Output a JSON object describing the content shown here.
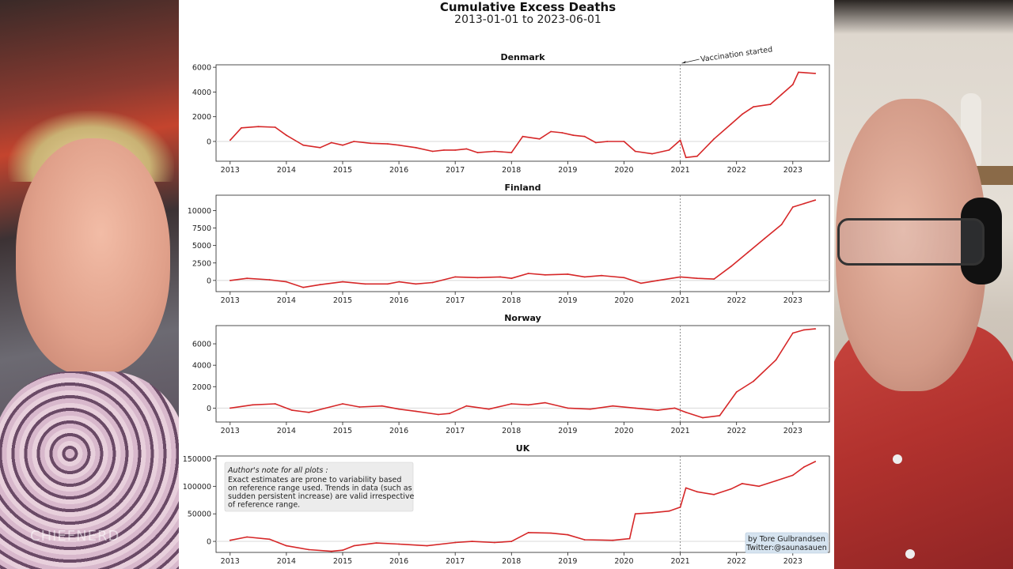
{
  "video": {
    "watermark": "CHIEFNERD"
  },
  "chart": {
    "title": "Cumulative Excess Deaths",
    "subtitle": "2013-01-01 to 2023-06-01",
    "annotation": "Vaccination started",
    "vaccination_x": 2021.0,
    "note_title": "Author's note for all plots :",
    "note_lines": [
      "Exact estimates are prone to variability based",
      "on reference range used. Trends in data (such as",
      "sudden persistent increase) are valid irrespective",
      "of reference range."
    ],
    "credit_lines": [
      "by Tore Gulbrandsen",
      "Twitter:@saunasauen"
    ],
    "line_color": "#d62728"
  },
  "chart_data": [
    {
      "type": "line",
      "title": "Denmark",
      "xlim": [
        2012.75,
        2023.65
      ],
      "ylim": [
        -1600,
        6200
      ],
      "xticks": [
        2013,
        2014,
        2015,
        2016,
        2017,
        2018,
        2019,
        2020,
        2021,
        2022,
        2023
      ],
      "xticklabels": [
        "2013",
        "2014",
        "2015",
        "2016",
        "2017",
        "2018",
        "2019",
        "2020",
        "2021",
        "2022",
        "2023"
      ],
      "yticks": [
        0,
        2000,
        4000,
        6000
      ],
      "yticklabels": [
        "0",
        "2000",
        "4000",
        "6000"
      ],
      "x": [
        2013.0,
        2013.2,
        2013.5,
        2013.8,
        2014.0,
        2014.3,
        2014.6,
        2014.8,
        2015.0,
        2015.2,
        2015.5,
        2015.8,
        2016.0,
        2016.3,
        2016.6,
        2016.8,
        2017.0,
        2017.2,
        2017.4,
        2017.7,
        2018.0,
        2018.2,
        2018.5,
        2018.7,
        2018.9,
        2019.1,
        2019.3,
        2019.5,
        2019.7,
        2020.0,
        2020.2,
        2020.5,
        2020.8,
        2021.0,
        2021.1,
        2021.3,
        2021.6,
        2021.9,
        2022.1,
        2022.3,
        2022.6,
        2022.8,
        2023.0,
        2023.1,
        2023.4
      ],
      "y": [
        100,
        1100,
        1200,
        1150,
        500,
        -300,
        -500,
        -100,
        -300,
        0,
        -150,
        -200,
        -300,
        -500,
        -800,
        -700,
        -700,
        -600,
        -900,
        -800,
        -900,
        400,
        200,
        800,
        700,
        500,
        400,
        -100,
        0,
        0,
        -800,
        -1000,
        -700,
        100,
        -1300,
        -1200,
        200,
        1400,
        2200,
        2800,
        3000,
        3800,
        4600,
        5600,
        5500
      ]
    },
    {
      "type": "line",
      "title": "Finland",
      "xlim": [
        2012.75,
        2023.65
      ],
      "ylim": [
        -1600,
        12200
      ],
      "xticks": [
        2013,
        2014,
        2015,
        2016,
        2017,
        2018,
        2019,
        2020,
        2021,
        2022,
        2023
      ],
      "xticklabels": [
        "2013",
        "2014",
        "2015",
        "2016",
        "2017",
        "2018",
        "2019",
        "2020",
        "2021",
        "2022",
        "2023"
      ],
      "yticks": [
        0,
        2500,
        5000,
        7500,
        10000
      ],
      "yticklabels": [
        "0",
        "2500",
        "5000",
        "7500",
        "10000"
      ],
      "x": [
        2013.0,
        2013.3,
        2013.7,
        2014.0,
        2014.3,
        2014.6,
        2015.0,
        2015.4,
        2015.8,
        2016.0,
        2016.3,
        2016.6,
        2017.0,
        2017.4,
        2017.8,
        2018.0,
        2018.3,
        2018.6,
        2019.0,
        2019.3,
        2019.6,
        2020.0,
        2020.3,
        2020.6,
        2021.0,
        2021.3,
        2021.6,
        2021.9,
        2022.2,
        2022.5,
        2022.8,
        2023.0,
        2023.2,
        2023.4
      ],
      "y": [
        0,
        300,
        100,
        -200,
        -1000,
        -600,
        -200,
        -500,
        -500,
        -200,
        -500,
        -300,
        500,
        400,
        500,
        300,
        1000,
        800,
        900,
        500,
        700,
        400,
        -400,
        0,
        500,
        300,
        200,
        2000,
        4000,
        6000,
        8000,
        10500,
        11000,
        11500
      ]
    },
    {
      "type": "line",
      "title": "Norway",
      "xlim": [
        2012.75,
        2023.65
      ],
      "ylim": [
        -1300,
        7700
      ],
      "xticks": [
        2013,
        2014,
        2015,
        2016,
        2017,
        2018,
        2019,
        2020,
        2021,
        2022,
        2023
      ],
      "xticklabels": [
        "2013",
        "2014",
        "2015",
        "2016",
        "2017",
        "2018",
        "2019",
        "2020",
        "2021",
        "2022",
        "2023"
      ],
      "yticks": [
        0,
        2000,
        4000,
        6000
      ],
      "yticklabels": [
        "0",
        "2000",
        "4000",
        "6000"
      ],
      "x": [
        2013.0,
        2013.4,
        2013.8,
        2014.1,
        2014.4,
        2014.7,
        2015.0,
        2015.3,
        2015.7,
        2016.0,
        2016.3,
        2016.7,
        2016.9,
        2017.2,
        2017.6,
        2018.0,
        2018.3,
        2018.6,
        2019.0,
        2019.4,
        2019.8,
        2020.2,
        2020.6,
        2020.9,
        2021.1,
        2021.4,
        2021.7,
        2022.0,
        2022.3,
        2022.7,
        2023.0,
        2023.2,
        2023.4
      ],
      "y": [
        0,
        300,
        400,
        -200,
        -400,
        0,
        400,
        100,
        200,
        -100,
        -300,
        -600,
        -500,
        200,
        -100,
        400,
        300,
        500,
        0,
        -100,
        200,
        0,
        -200,
        0,
        -400,
        -900,
        -700,
        1500,
        2500,
        4500,
        7000,
        7300,
        7400
      ]
    },
    {
      "type": "line",
      "title": "UK",
      "xlim": [
        2012.75,
        2023.65
      ],
      "ylim": [
        -20000,
        155000
      ],
      "xticks": [
        2013,
        2014,
        2015,
        2016,
        2017,
        2018,
        2019,
        2020,
        2021,
        2022,
        2023
      ],
      "xticklabels": [
        "2013",
        "2014",
        "2015",
        "2016",
        "2017",
        "2018",
        "2019",
        "2020",
        "2021",
        "2022",
        "2023"
      ],
      "yticks": [
        0,
        50000,
        100000,
        150000
      ],
      "yticklabels": [
        "0",
        "50000",
        "100000",
        "150000"
      ],
      "x": [
        2013.0,
        2013.3,
        2013.7,
        2014.0,
        2014.4,
        2014.8,
        2015.0,
        2015.2,
        2015.6,
        2016.0,
        2016.5,
        2017.0,
        2017.3,
        2017.7,
        2018.0,
        2018.3,
        2018.7,
        2019.0,
        2019.3,
        2019.8,
        2020.1,
        2020.2,
        2020.5,
        2020.8,
        2021.0,
        2021.1,
        2021.3,
        2021.6,
        2021.9,
        2022.1,
        2022.4,
        2022.7,
        2023.0,
        2023.2,
        2023.4
      ],
      "y": [
        2000,
        8000,
        4000,
        -8000,
        -15000,
        -18000,
        -16000,
        -8000,
        -3000,
        -5000,
        -8000,
        -2000,
        0,
        -2000,
        0,
        16000,
        15000,
        12000,
        3000,
        2000,
        5000,
        50000,
        52000,
        55000,
        62000,
        97000,
        90000,
        85000,
        95000,
        105000,
        100000,
        110000,
        120000,
        135000,
        145000
      ]
    }
  ]
}
